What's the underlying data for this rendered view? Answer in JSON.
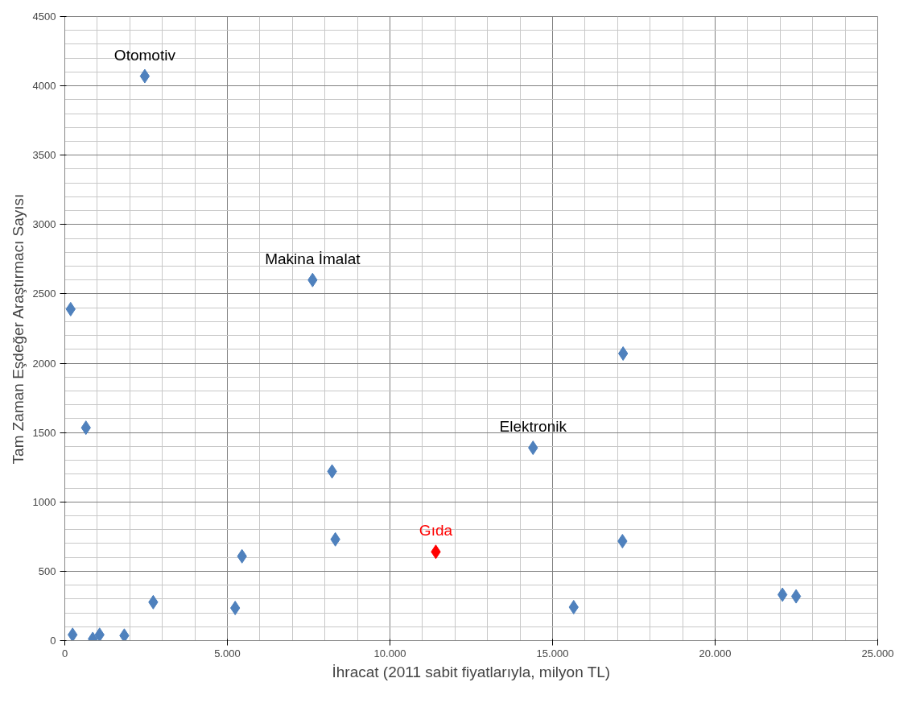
{
  "chart_data": {
    "type": "scatter",
    "xlabel": "İhracat (2011 sabit fiyatlarıyla, milyon TL)",
    "ylabel": "Tam Zaman Eşdeğer Araştırmacı Sayısı",
    "x": [
      2460,
      7620,
      180,
      17170,
      650,
      14400,
      8220,
      8320,
      17150,
      11410,
      5450,
      2720,
      5240,
      15650,
      22070,
      22490,
      240,
      860,
      1070,
      1830
    ],
    "values": [
      4070,
      2600,
      2390,
      2070,
      1535,
      1390,
      1220,
      730,
      717,
      640,
      608,
      277,
      235,
      241,
      331,
      319,
      42,
      12,
      42,
      36
    ],
    "colors": [
      "#4f81bd",
      "#4f81bd",
      "#4f81bd",
      "#4f81bd",
      "#4f81bd",
      "#4f81bd",
      "#4f81bd",
      "#4f81bd",
      "#4f81bd",
      "#ff0000",
      "#4f81bd",
      "#4f81bd",
      "#4f81bd",
      "#4f81bd",
      "#4f81bd",
      "#4f81bd",
      "#4f81bd",
      "#4f81bd",
      "#4f81bd",
      "#4f81bd"
    ],
    "marker": "diamond",
    "grid": true,
    "xlim": [
      0,
      25000
    ],
    "ylim": [
      0,
      4500
    ],
    "xticks": [
      0,
      {
        "value": 5000,
        "label": "5.000"
      },
      {
        "value": 10000,
        "label": "10.000"
      },
      {
        "value": 15000,
        "label": "15.000"
      },
      {
        "value": 20000,
        "label": "20.000"
      },
      {
        "value": 25000,
        "label": "25.000"
      }
    ],
    "yticks": [
      0,
      500,
      1000,
      1500,
      2000,
      2500,
      3000,
      3500,
      4000,
      4500
    ],
    "annotations": [
      {
        "text": "Otomotiv",
        "x": 2460,
        "y": 4070
      },
      {
        "text": "Makina İmalat",
        "x": 7620,
        "y": 2600
      },
      {
        "text": "Elektronik",
        "x": 14400,
        "y": 1390
      },
      {
        "text": "Gıda",
        "x": 11410,
        "y": 640
      }
    ]
  }
}
